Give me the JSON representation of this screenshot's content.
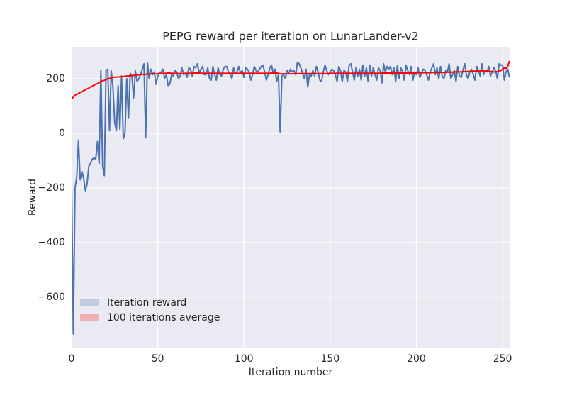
{
  "chart_data": {
    "type": "line",
    "title": "PEPG reward per iteration on LunarLander-v2",
    "xlabel": "Iteration number",
    "ylabel": "Reward",
    "xlim": [
      0,
      254.5
    ],
    "ylim": [
      -785,
      317
    ],
    "xticks": [
      0,
      50,
      100,
      150,
      200,
      250
    ],
    "yticks": [
      {
        "value": -600,
        "label": "−600"
      },
      {
        "value": -400,
        "label": "−400"
      },
      {
        "value": -200,
        "label": "−200"
      },
      0,
      200
    ],
    "grid": true,
    "legend": "lower left",
    "x": [
      0,
      1,
      2,
      3,
      4,
      5,
      6,
      7,
      8,
      9,
      10,
      11,
      12,
      13,
      14,
      15,
      16,
      17,
      18,
      19,
      20,
      21,
      22,
      23,
      24,
      25,
      26,
      27,
      28,
      29,
      30,
      31,
      32,
      33,
      34,
      35,
      36,
      37,
      38,
      39,
      40,
      41,
      42,
      43,
      44,
      45,
      46,
      47,
      48,
      49,
      50,
      51,
      52,
      53,
      54,
      55,
      56,
      57,
      58,
      59,
      60,
      61,
      62,
      63,
      64,
      65,
      66,
      67,
      68,
      69,
      70,
      71,
      72,
      73,
      74,
      75,
      76,
      77,
      78,
      79,
      80,
      81,
      82,
      83,
      84,
      85,
      86,
      87,
      88,
      89,
      90,
      91,
      92,
      93,
      94,
      95,
      96,
      97,
      98,
      99,
      100,
      101,
      102,
      103,
      104,
      105,
      106,
      107,
      108,
      109,
      110,
      111,
      112,
      113,
      114,
      115,
      116,
      117,
      118,
      119,
      120,
      121,
      122,
      123,
      124,
      125,
      126,
      127,
      128,
      129,
      130,
      131,
      132,
      133,
      134,
      135,
      136,
      137,
      138,
      139,
      140,
      141,
      142,
      143,
      144,
      145,
      146,
      147,
      148,
      149,
      150,
      151,
      152,
      153,
      154,
      155,
      156,
      157,
      158,
      159,
      160,
      161,
      162,
      163,
      164,
      165,
      166,
      167,
      168,
      169,
      170,
      171,
      172,
      173,
      174,
      175,
      176,
      177,
      178,
      179,
      180,
      181,
      182,
      183,
      184,
      185,
      186,
      187,
      188,
      189,
      190,
      191,
      192,
      193,
      194,
      195,
      196,
      197,
      198,
      199,
      200,
      201,
      202,
      203,
      204,
      205,
      206,
      207,
      208,
      209,
      210,
      211,
      212,
      213,
      214,
      215,
      216,
      217,
      218,
      219,
      220,
      221,
      222,
      223,
      224,
      225,
      226,
      227,
      228,
      229,
      230,
      231,
      232,
      233,
      234,
      235,
      236,
      237,
      238,
      239,
      240,
      241,
      242,
      243,
      244,
      245,
      246,
      247,
      248,
      249,
      250,
      251,
      252,
      253,
      254
    ],
    "series": [
      {
        "name": "Iteration reward",
        "color": "#4c72b0",
        "values": [
          -180,
          -735,
          -200,
          -160,
          -25,
          -170,
          -140,
          -165,
          -210,
          -185,
          -120,
          -110,
          -95,
          -90,
          -95,
          -30,
          -110,
          230,
          -120,
          -155,
          230,
          235,
          10,
          230,
          170,
          40,
          10,
          175,
          15,
          210,
          -20,
          0,
          200,
          55,
          220,
          210,
          130,
          230,
          190,
          200,
          215,
          235,
          255,
          -15,
          260,
          200,
          235,
          215,
          225,
          180,
          210,
          220,
          225,
          235,
          200,
          215,
          175,
          180,
          215,
          210,
          230,
          225,
          200,
          210,
          240,
          215,
          220,
          205,
          240,
          235,
          210,
          245,
          240,
          255,
          220,
          235,
          245,
          215,
          215,
          240,
          200,
          195,
          245,
          215,
          195,
          240,
          215,
          210,
          235,
          245,
          245,
          225,
          220,
          200,
          240,
          220,
          225,
          245,
          220,
          230,
          205,
          240,
          235,
          225,
          195,
          215,
          245,
          230,
          225,
          235,
          245,
          250,
          225,
          195,
          215,
          240,
          250,
          220,
          235,
          190,
          215,
          5,
          210,
          215,
          200,
          230,
          220,
          235,
          225,
          230,
          215,
          260,
          255,
          240,
          220,
          200,
          235,
          170,
          215,
          210,
          230,
          210,
          245,
          225,
          195,
          190,
          225,
          250,
          230,
          215,
          225,
          235,
          230,
          215,
          190,
          245,
          230,
          190,
          230,
          225,
          190,
          250,
          255,
          225,
          195,
          240,
          210,
          235,
          195,
          250,
          210,
          240,
          190,
          250,
          210,
          240,
          215,
          195,
          240,
          230,
          185,
          255,
          225,
          245,
          235,
          245,
          215,
          240,
          190,
          250,
          200,
          240,
          225,
          195,
          250,
          230,
          215,
          245,
          195,
          225,
          215,
          240,
          205,
          220,
          235,
          230,
          215,
          195,
          225,
          240,
          255,
          215,
          240,
          200,
          245,
          210,
          200,
          230,
          225,
          255,
          200,
          215,
          230,
          190,
          245,
          210,
          205,
          230,
          255,
          215,
          200,
          225,
          235,
          215,
          195,
          245,
          230,
          210,
          255,
          215,
          230,
          225,
          245,
          210,
          225,
          240,
          230,
          200,
          255,
          250,
          250,
          195,
          225,
          235,
          205
        ]
      },
      {
        "name": "100 iterations average",
        "color": "#ff0000",
        "values": [
          125,
          133,
          140,
          143,
          146,
          150,
          153,
          156,
          160,
          163,
          166,
          170,
          173,
          176,
          180,
          182,
          186,
          190,
          192,
          194,
          197,
          200,
          201,
          203,
          205,
          206,
          206,
          207,
          207,
          208,
          208,
          209,
          210,
          210,
          211,
          212,
          212,
          213,
          214,
          214,
          215,
          216,
          216,
          216,
          217,
          217,
          218,
          218,
          218,
          218,
          219,
          219,
          219,
          220,
          220,
          220,
          221,
          221,
          220,
          220,
          220,
          220,
          219,
          219,
          219,
          219,
          220,
          220,
          220,
          220,
          221,
          221,
          221,
          221,
          221,
          220,
          220,
          220,
          220,
          220,
          220,
          220,
          220,
          220,
          220,
          220,
          220,
          220,
          220,
          220,
          220,
          220,
          220,
          220,
          220,
          220,
          220,
          220,
          220,
          220,
          220,
          220,
          220,
          220,
          220,
          220,
          220,
          220,
          220,
          220,
          220,
          220,
          220,
          220,
          220,
          220,
          221,
          221,
          221,
          221,
          220,
          218,
          218,
          218,
          218,
          218,
          218,
          218,
          218,
          218,
          219,
          219,
          219,
          219,
          219,
          219,
          219,
          219,
          219,
          219,
          219,
          219,
          219,
          219,
          219,
          219,
          219,
          219,
          219,
          219,
          220,
          220,
          220,
          220,
          220,
          220,
          220,
          220,
          220,
          220,
          220,
          220,
          220,
          220,
          220,
          220,
          220,
          220,
          220,
          220,
          220,
          220,
          220,
          220,
          220,
          220,
          220,
          220,
          220,
          220,
          221,
          221,
          221,
          221,
          221,
          221,
          221,
          221,
          221,
          221,
          221,
          221,
          221,
          221,
          221,
          221,
          221,
          221,
          221,
          221,
          222,
          222,
          222,
          222,
          222,
          222,
          222,
          222,
          222,
          222,
          223,
          223,
          223,
          223,
          223,
          223,
          223,
          223,
          224,
          224,
          224,
          224,
          225,
          225,
          225,
          225,
          225,
          226,
          226,
          226,
          227,
          227,
          227,
          228,
          228,
          228,
          229,
          229,
          229,
          229,
          229,
          228,
          228,
          227,
          226,
          225,
          225,
          226,
          228,
          230,
          235,
          240,
          238,
          245,
          265
        ]
      }
    ]
  }
}
